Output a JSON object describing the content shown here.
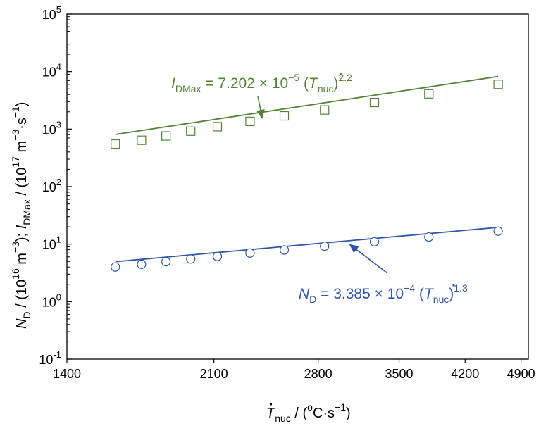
{
  "chart_data": {
    "type": "scatter",
    "x_scale": "log",
    "y_scale": "log",
    "xlim": [
      1400,
      5000
    ],
    "ylim": [
      0.1,
      100000
    ],
    "x_ticks": [
      1400,
      2100,
      2800,
      3500,
      4200,
      4900
    ],
    "x_tick_labels": [
      "1400",
      "2100",
      "2800",
      "3500",
      "4200",
      "4900"
    ],
    "y_ticks": [
      0.1,
      1,
      10,
      100,
      1000,
      10000,
      100000
    ],
    "y_tick_labels": [
      {
        "base": "10",
        "exp": "-1"
      },
      {
        "base": "10",
        "exp": "0"
      },
      {
        "base": "10",
        "exp": "1"
      },
      {
        "base": "10",
        "exp": "2"
      },
      {
        "base": "10",
        "exp": "3"
      },
      {
        "base": "10",
        "exp": "4"
      },
      {
        "base": "10",
        "exp": "5"
      }
    ],
    "xlabel": {
      "symbol": "T",
      "sub": "nuc",
      "rest": " / (",
      "unit_o": "o",
      "unit_mid": "C·s",
      "unit_exp": "−1",
      "close": ")"
    },
    "ylabel": {
      "sym1": "N",
      "sub1": "D",
      "part1": " / (10",
      "exp1": "16",
      "part2": " m",
      "exp2": "−3",
      "part3": ");  ",
      "sym2": "I",
      "sub2": "DMax",
      "part4": " / (10",
      "exp3": "17",
      "part5": " m",
      "exp4": "−3",
      "part6": "·s",
      "exp5": "−1",
      "part7": ")"
    },
    "series": [
      {
        "name": "I_DMax",
        "color": "#548235",
        "marker": "square",
        "x": [
          1600,
          1720,
          1840,
          1970,
          2120,
          2320,
          2550,
          2850,
          3270,
          3800,
          4600
        ],
        "y": [
          550,
          640,
          760,
          920,
          1100,
          1360,
          1700,
          2150,
          2900,
          4100,
          6000
        ],
        "fit": {
          "coef": 7.202e-05,
          "exp": 2.2
        },
        "equation": {
          "sym": "I",
          "sub": "DMax",
          "text1": " = 7.202 × 10",
          "exp1": "−5",
          "text2": " (",
          "var": "T",
          "var_sub": "nuc",
          "text3": ")",
          "exp2": "2.2"
        }
      },
      {
        "name": "N_D",
        "color": "#2f55a4",
        "marker": "circle",
        "x": [
          1600,
          1720,
          1840,
          1970,
          2120,
          2320,
          2550,
          2850,
          3270,
          3800,
          4600
        ],
        "y": [
          4.0,
          4.45,
          4.95,
          5.5,
          6.1,
          7.0,
          7.9,
          9.2,
          11.0,
          13.3,
          16.8
        ],
        "fit": {
          "coef": 0.0003385,
          "exp": 1.3
        },
        "equation": {
          "sym": "N",
          "sub": "D",
          "text1": " = 3.385 × 10",
          "exp1": "−4",
          "text2": " (",
          "var": "T",
          "var_sub": "nuc",
          "text3": ")",
          "exp2": "1.3"
        }
      }
    ],
    "arrows": [
      {
        "series": "I_DMax",
        "target_x": 2400,
        "target_y": 1500
      },
      {
        "series": "N_D",
        "target_x": 3050,
        "target_y": 10
      }
    ]
  }
}
